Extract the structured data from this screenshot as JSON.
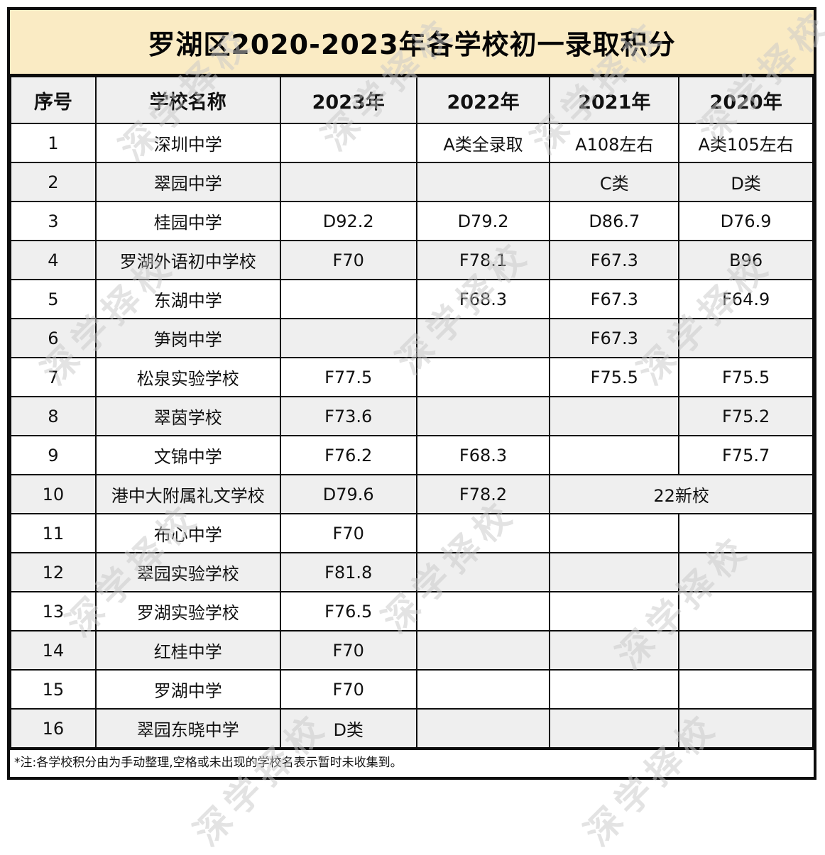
{
  "title": "罗湖区2020-2023年各学校初一录取积分",
  "watermark": {
    "text": "深学择校"
  },
  "table": {
    "columns": [
      "序号",
      "学校名称",
      "2023年",
      "2022年",
      "2021年",
      "2020年"
    ],
    "rows": [
      {
        "no": "1",
        "school": "深圳中学",
        "scores": [
          {
            "text": ""
          },
          {
            "text": "A类全录取"
          },
          {
            "text": "A108左右"
          },
          {
            "text": "A类105左右"
          }
        ]
      },
      {
        "no": "2",
        "school": "翠园中学",
        "scores": [
          {
            "text": ""
          },
          {
            "text": ""
          },
          {
            "text": "C类"
          },
          {
            "text": "D类"
          }
        ]
      },
      {
        "no": "3",
        "school": "桂园中学",
        "scores": [
          {
            "text": "D92.2"
          },
          {
            "text": "D79.2"
          },
          {
            "text": "D86.7"
          },
          {
            "text": "D76.9"
          }
        ]
      },
      {
        "no": "4",
        "school": "罗湖外语初中学校",
        "scores": [
          {
            "text": "F70"
          },
          {
            "text": "F78.1"
          },
          {
            "text": "F67.3"
          },
          {
            "text": "B96"
          }
        ]
      },
      {
        "no": "5",
        "school": "东湖中学",
        "scores": [
          {
            "text": ""
          },
          {
            "text": "F68.3"
          },
          {
            "text": "F67.3"
          },
          {
            "text": "F64.9"
          }
        ]
      },
      {
        "no": "6",
        "school": "笋岗中学",
        "scores": [
          {
            "text": ""
          },
          {
            "text": ""
          },
          {
            "text": "F67.3"
          },
          {
            "text": ""
          }
        ]
      },
      {
        "no": "7",
        "school": "松泉实验学校",
        "scores": [
          {
            "text": "F77.5"
          },
          {
            "text": ""
          },
          {
            "text": "F75.5"
          },
          {
            "text": "F75.5"
          }
        ]
      },
      {
        "no": "8",
        "school": "翠茵学校",
        "scores": [
          {
            "text": "F73.6"
          },
          {
            "text": ""
          },
          {
            "text": ""
          },
          {
            "text": "F75.2"
          }
        ]
      },
      {
        "no": "9",
        "school": "文锦中学",
        "scores": [
          {
            "text": "F76.2"
          },
          {
            "text": "F68.3"
          },
          {
            "text": ""
          },
          {
            "text": "F75.7"
          }
        ]
      },
      {
        "no": "10",
        "school": "港中大附属礼文学校",
        "scores": [
          {
            "text": "D79.6"
          },
          {
            "text": "F78.2"
          },
          {
            "text": "22新校",
            "colspan": 2
          }
        ]
      },
      {
        "no": "11",
        "school": "布心中学",
        "scores": [
          {
            "text": "F70"
          },
          {
            "text": ""
          },
          {
            "text": ""
          },
          {
            "text": ""
          }
        ]
      },
      {
        "no": "12",
        "school": "翠园实验学校",
        "scores": [
          {
            "text": "F81.8"
          },
          {
            "text": ""
          },
          {
            "text": ""
          },
          {
            "text": ""
          }
        ]
      },
      {
        "no": "13",
        "school": "罗湖实验学校",
        "scores": [
          {
            "text": "F76.5"
          },
          {
            "text": ""
          },
          {
            "text": ""
          },
          {
            "text": ""
          }
        ]
      },
      {
        "no": "14",
        "school": "红桂中学",
        "scores": [
          {
            "text": "F70"
          },
          {
            "text": ""
          },
          {
            "text": ""
          },
          {
            "text": ""
          }
        ]
      },
      {
        "no": "15",
        "school": "罗湖中学",
        "scores": [
          {
            "text": "F70"
          },
          {
            "text": ""
          },
          {
            "text": ""
          },
          {
            "text": ""
          }
        ]
      },
      {
        "no": "16",
        "school": "翠园东晓中学",
        "scores": [
          {
            "text": "D类"
          },
          {
            "text": ""
          },
          {
            "text": ""
          },
          {
            "text": ""
          }
        ]
      }
    ]
  },
  "footnote": "*注:各学校积分由为手动整理,空格或未出现的学校名表示暂时未收集到。",
  "colors": {
    "title_background": "#FAEBC4",
    "header_row_background": "#EFEFEF",
    "alt_row_background": "#EFEFEF",
    "border": "#0d0d0d",
    "watermark": "#c9c9c9"
  }
}
